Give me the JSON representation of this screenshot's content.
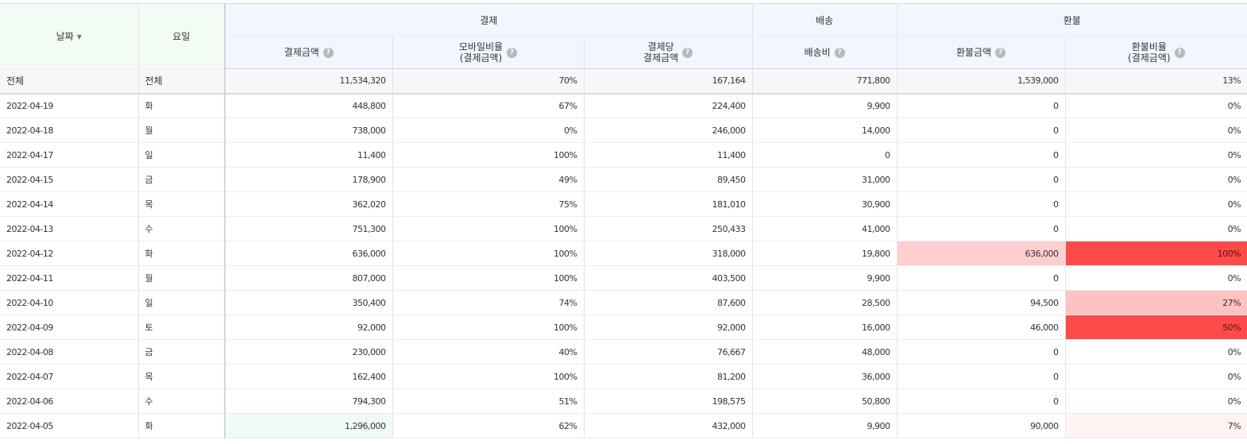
{
  "headers": {
    "date": "날짜",
    "day": "요일",
    "group_payment": "결제",
    "group_shipping": "배송",
    "group_refund": "환불",
    "payment_amount": "결제금액",
    "mobile_ratio_line1": "모바일비율",
    "mobile_ratio_line2": "(결제금액)",
    "per_payment_line1": "결제당",
    "per_payment_line2": "결제금액",
    "shipping_fee": "배송비",
    "refund_amount": "환불금액",
    "refund_ratio_line1": "환불비율",
    "refund_ratio_line2": "(결제금액)",
    "help_symbol": "?",
    "sort_icon": "caret-down-icon"
  },
  "total": {
    "date": "전체",
    "day": "전체",
    "payment": "11,534,320",
    "mobile": "70%",
    "per_payment": "167,164",
    "shipping": "771,800",
    "refund": "1,539,000",
    "refund_ratio": "13%"
  },
  "rows": [
    {
      "date": "2022-04-19",
      "day": "화",
      "payment": "448,800",
      "mobile": "67%",
      "per_payment": "224,400",
      "shipping": "9,900",
      "refund": "0",
      "refund_ratio": "0%"
    },
    {
      "date": "2022-04-18",
      "day": "월",
      "payment": "738,000",
      "mobile": "0%",
      "per_payment": "246,000",
      "shipping": "14,000",
      "refund": "0",
      "refund_ratio": "0%"
    },
    {
      "date": "2022-04-17",
      "day": "일",
      "payment": "11,400",
      "mobile": "100%",
      "per_payment": "11,400",
      "shipping": "0",
      "refund": "0",
      "refund_ratio": "0%"
    },
    {
      "date": "2022-04-15",
      "day": "금",
      "payment": "178,900",
      "mobile": "49%",
      "per_payment": "89,450",
      "shipping": "31,000",
      "refund": "0",
      "refund_ratio": "0%"
    },
    {
      "date": "2022-04-14",
      "day": "목",
      "payment": "362,020",
      "mobile": "75%",
      "per_payment": "181,010",
      "shipping": "30,900",
      "refund": "0",
      "refund_ratio": "0%"
    },
    {
      "date": "2022-04-13",
      "day": "수",
      "payment": "751,300",
      "mobile": "100%",
      "per_payment": "250,433",
      "shipping": "41,000",
      "refund": "0",
      "refund_ratio": "0%"
    },
    {
      "date": "2022-04-12",
      "day": "화",
      "payment": "636,000",
      "mobile": "100%",
      "per_payment": "318,000",
      "shipping": "19,800",
      "refund": "636,000",
      "refund_ratio": "100%",
      "refund_bg": "#ffcfcf",
      "ratio_bg": "#ff4a4a"
    },
    {
      "date": "2022-04-11",
      "day": "월",
      "payment": "807,000",
      "mobile": "100%",
      "per_payment": "403,500",
      "shipping": "9,900",
      "refund": "0",
      "refund_ratio": "0%"
    },
    {
      "date": "2022-04-10",
      "day": "일",
      "payment": "350,400",
      "mobile": "74%",
      "per_payment": "87,600",
      "shipping": "28,500",
      "refund": "94,500",
      "refund_ratio": "27%",
      "ratio_bg": "#ffc2c2"
    },
    {
      "date": "2022-04-09",
      "day": "토",
      "payment": "92,000",
      "mobile": "100%",
      "per_payment": "92,000",
      "shipping": "16,000",
      "refund": "46,000",
      "refund_ratio": "50%",
      "ratio_bg": "#ff4a4a"
    },
    {
      "date": "2022-04-08",
      "day": "금",
      "payment": "230,000",
      "mobile": "40%",
      "per_payment": "76,667",
      "shipping": "48,000",
      "refund": "0",
      "refund_ratio": "0%"
    },
    {
      "date": "2022-04-07",
      "day": "목",
      "payment": "162,400",
      "mobile": "100%",
      "per_payment": "81,200",
      "shipping": "36,000",
      "refund": "0",
      "refund_ratio": "0%"
    },
    {
      "date": "2022-04-06",
      "day": "수",
      "payment": "794,300",
      "mobile": "51%",
      "per_payment": "198,575",
      "shipping": "50,800",
      "refund": "0",
      "refund_ratio": "0%"
    },
    {
      "date": "2022-04-05",
      "day": "화",
      "payment": "1,296,000",
      "mobile": "62%",
      "per_payment": "432,000",
      "shipping": "9,900",
      "refund": "90,000",
      "refund_ratio": "7%",
      "payment_bg": "#f1fbf5",
      "ratio_bg": "#fff3f3"
    }
  ]
}
